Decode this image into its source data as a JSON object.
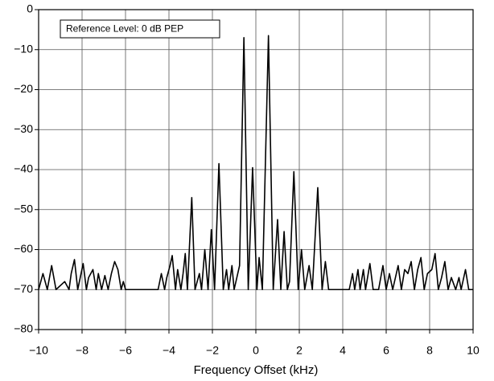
{
  "chart_data": {
    "type": "line",
    "annotation": "Reference Level: 0 dB PEP",
    "xlabel": "Frequency Offset (kHz)",
    "color": "#000000",
    "grid": true,
    "xlim": [
      -10,
      10
    ],
    "ylim": [
      -80,
      0
    ],
    "xticks": [
      {
        "value": -10,
        "label": "−10"
      },
      {
        "value": -8,
        "label": "−8"
      },
      {
        "value": -6,
        "label": "−6"
      },
      {
        "value": -4,
        "label": "−4"
      },
      {
        "value": -2,
        "label": "−2"
      },
      0,
      2,
      4,
      6,
      8,
      10
    ],
    "yticks": [
      0,
      {
        "value": -10,
        "label": "−10"
      },
      {
        "value": -20,
        "label": "−20"
      },
      {
        "value": -30,
        "label": "−30"
      },
      {
        "value": -40,
        "label": "−40"
      },
      {
        "value": -50,
        "label": "−50"
      },
      {
        "value": -60,
        "label": "−60"
      },
      {
        "value": -70,
        "label": "−70"
      },
      {
        "value": -80,
        "label": "−80"
      }
    ],
    "x": [
      -10,
      -9.8,
      -9.6,
      -9.5,
      -9.4,
      -9.2,
      -8.8,
      -8.6,
      -8.5,
      -8.35,
      -8.2,
      -7.95,
      -7.8,
      -7.7,
      -7.5,
      -7.35,
      -7.25,
      -7.1,
      -6.95,
      -6.8,
      -6.65,
      -6.5,
      -6.35,
      -6.2,
      -6.1,
      -6.0,
      -4.5,
      -4.35,
      -4.2,
      -4.1,
      -3.95,
      -3.85,
      -3.7,
      -3.6,
      -3.45,
      -3.35,
      -3.25,
      -3.15,
      -2.95,
      -2.8,
      -2.6,
      -2.5,
      -2.35,
      -2.2,
      -2.05,
      -1.9,
      -1.7,
      -1.5,
      -1.35,
      -1.25,
      -1.1,
      -1.0,
      -0.75,
      -0.55,
      -0.35,
      -0.15,
      0.05,
      0.15,
      0.3,
      0.58,
      0.8,
      1.0,
      1.15,
      1.3,
      1.45,
      1.55,
      1.75,
      1.95,
      2.1,
      2.25,
      2.45,
      2.6,
      2.85,
      3.05,
      3.2,
      3.35,
      4.3,
      4.45,
      4.55,
      4.7,
      4.8,
      4.95,
      5.05,
      5.25,
      5.4,
      5.65,
      5.85,
      6.0,
      6.15,
      6.3,
      6.55,
      6.7,
      6.85,
      7.0,
      7.15,
      7.3,
      7.45,
      7.6,
      7.75,
      7.9,
      8.1,
      8.25,
      8.4,
      8.55,
      8.7,
      8.85,
      9.0,
      9.2,
      9.35,
      9.45,
      9.65,
      9.8,
      10
    ],
    "values": [
      -70,
      -66,
      -70,
      -67,
      -64,
      -70,
      -68,
      -70,
      -66,
      -62.5,
      -70,
      -63.5,
      -70,
      -67,
      -65,
      -70,
      -66,
      -70,
      -66.5,
      -70,
      -66,
      -63,
      -65,
      -70,
      -68,
      -70,
      -70,
      -66,
      -70,
      -67,
      -64,
      -61.5,
      -70,
      -65,
      -70,
      -66,
      -61,
      -70,
      -47,
      -70,
      -66,
      -70,
      -60,
      -70,
      -55,
      -70,
      -38.5,
      -70,
      -65,
      -70,
      -64,
      -70,
      -64,
      -7,
      -70,
      -39.5,
      -70,
      -62,
      -70,
      -6.5,
      -70,
      -52.5,
      -70,
      -55.5,
      -70,
      -68,
      -40.5,
      -70,
      -60,
      -70,
      -64,
      -70,
      -44.5,
      -70,
      -63,
      -70,
      -70,
      -66,
      -70,
      -65,
      -70,
      -65,
      -70,
      -63.5,
      -70,
      -70,
      -64,
      -70,
      -66,
      -70,
      -64,
      -70,
      -65,
      -66,
      -63,
      -70,
      -65,
      -62,
      -70,
      -66,
      -65,
      -61,
      -70,
      -67,
      -63,
      -70,
      -67,
      -70,
      -67,
      -70,
      -65,
      -70,
      -70
    ]
  }
}
